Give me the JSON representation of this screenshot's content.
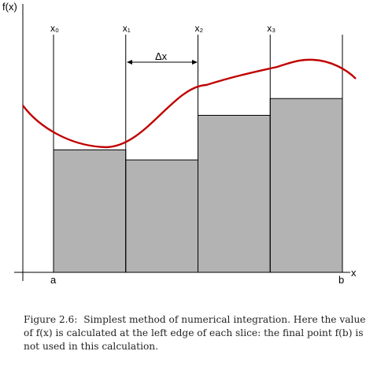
{
  "axes": {
    "y_label": "f(x)",
    "x_label": "x",
    "x_start_label": "a",
    "x_end_label": "b"
  },
  "slices": [
    {
      "label": "x₀",
      "height": 0.585
    },
    {
      "label": "x₁",
      "height": 0.537
    },
    {
      "label": "x₂",
      "height": 0.75
    },
    {
      "label": "x₃",
      "height": 0.83
    }
  ],
  "delta_label": "Δx",
  "caption": {
    "label": "Figure 2.6:",
    "text": "Simplest method of numerical integration. Here the value of f(x) is calculated at the left edge of each slice: the final point f(b) is not used in this calculation."
  },
  "colors": {
    "curve": "#c00000",
    "fill": "#b3b3b3",
    "lines": "#000000"
  }
}
